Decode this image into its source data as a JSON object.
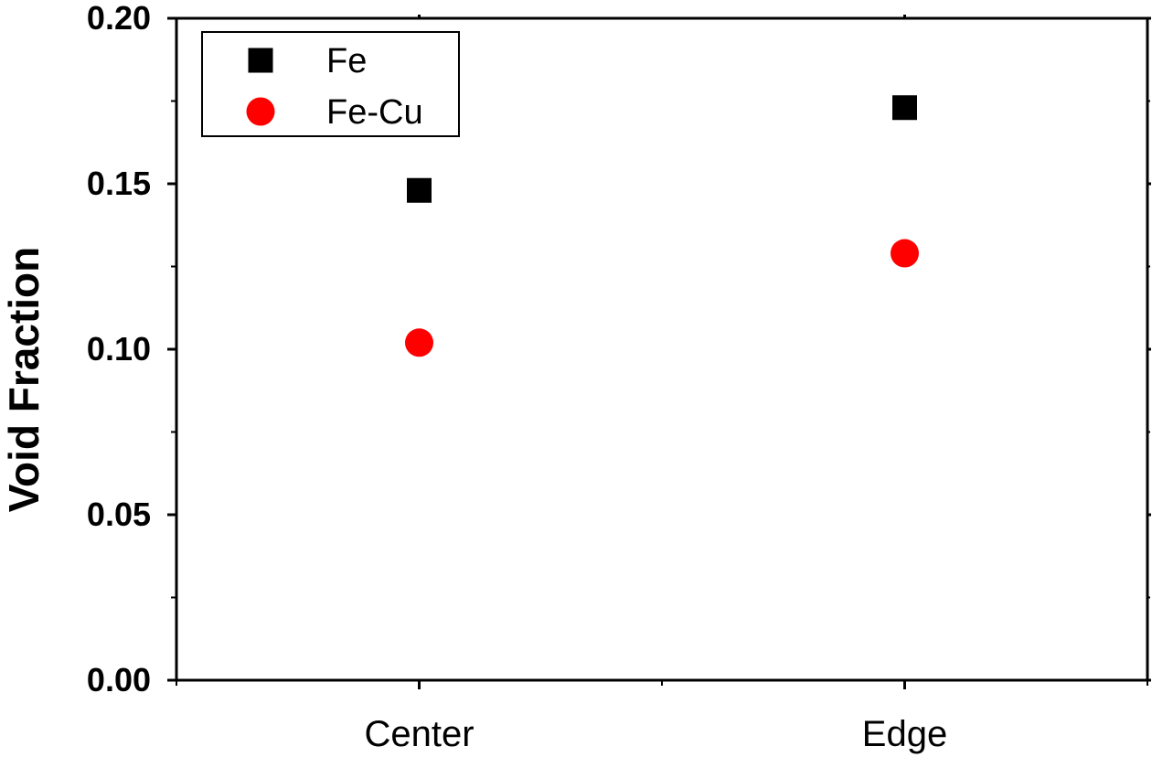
{
  "chart_data": {
    "type": "scatter",
    "title": "",
    "xlabel": "",
    "ylabel": "Void Fraction",
    "categories": [
      "Center",
      "Edge"
    ],
    "ylim": [
      0.0,
      0.2
    ],
    "yticks": [
      "0.00",
      "0.05",
      "0.10",
      "0.15",
      "0.20"
    ],
    "grid": false,
    "legend_position": "top-left",
    "series": [
      {
        "name": "Fe",
        "marker": "square",
        "color": "#000000",
        "values": [
          0.148,
          0.173
        ]
      },
      {
        "name": "Fe-Cu",
        "marker": "circle",
        "color": "#ff0000",
        "values": [
          0.102,
          0.129
        ]
      }
    ]
  }
}
